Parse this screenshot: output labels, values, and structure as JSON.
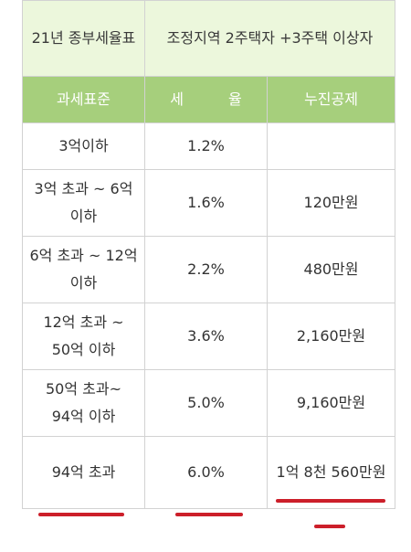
{
  "table": {
    "title_left": "21년 종부세율표",
    "title_right": "조정지역 2주택자 +3주택 이상자",
    "headers": [
      "과세표준",
      "세 율",
      "누진공제"
    ],
    "rows": [
      {
        "bracket": "3억이하",
        "rate": "1.2%",
        "deduction": ""
      },
      {
        "bracket": "3억 초과 ~ 6억 이하",
        "rate": "1.6%",
        "deduction": "120만원"
      },
      {
        "bracket": "6억 초과 ~ 12억 이하",
        "rate": "2.2%",
        "deduction": "480만원"
      },
      {
        "bracket": "12억 초과 ~ 50억 이하",
        "rate": "3.6%",
        "deduction": "2,160만원"
      },
      {
        "bracket": "50억 초과~ 94억 이하",
        "rate": "5.0%",
        "deduction": "9,160만원"
      },
      {
        "bracket": "94억 초과",
        "rate": "6.0%",
        "deduction": "1억 8천 560만원"
      }
    ]
  },
  "highlight_color": "#cc1f2a",
  "header_color": "#a6cf7c",
  "title_bg_color": "#ecf7dc"
}
